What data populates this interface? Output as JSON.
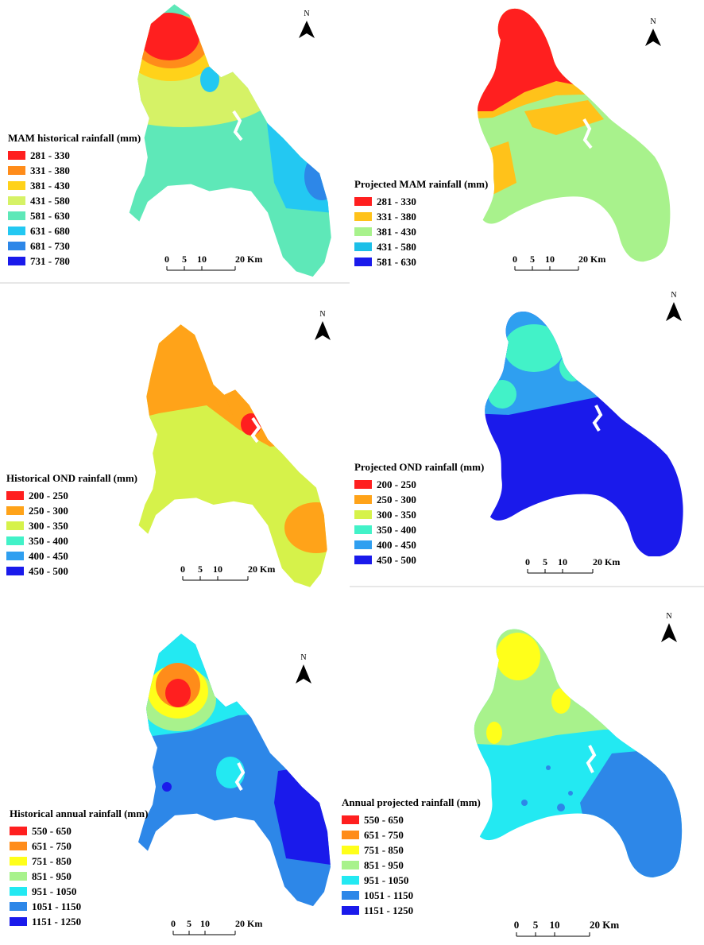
{
  "colors": {
    "red": "#ff1f1f",
    "orange": "#ffa319",
    "yellow": "#ffff1a",
    "yellow_green": "#d6f266",
    "light_green": "#a8f28c",
    "mint": "#66f2c0",
    "cyan": "#23e9f2",
    "sky": "#2fb0f0",
    "blue": "#2d87e8",
    "deep_blue": "#1a1aeb",
    "gold": "#ffc21a",
    "cyan2": "#1cbfe8",
    "cyan3": "#1fdfe8"
  },
  "panels": [
    {
      "title": "MAM historical rainfall (mm)",
      "legend": [
        {
          "label": "281 - 330",
          "color": "#ff1f1f"
        },
        {
          "label": "331 - 380",
          "color": "#ff8c1a"
        },
        {
          "label": "381 - 430",
          "color": "#ffd21a"
        },
        {
          "label": "431 - 580",
          "color": "#d6f266"
        },
        {
          "label": "581 - 630",
          "color": "#5ee8b8"
        },
        {
          "label": "631 - 680",
          "color": "#23c8f2"
        },
        {
          "label": "681 - 730",
          "color": "#2d87e8"
        },
        {
          "label": "731 - 780",
          "color": "#1a1aeb"
        }
      ],
      "scale": [
        "0",
        "5",
        "10",
        "20 Km"
      ],
      "north": "N"
    },
    {
      "title": "Projected MAM rainfall (mm)",
      "legend": [
        {
          "label": "281 - 330",
          "color": "#ff1f1f"
        },
        {
          "label": "331 - 380",
          "color": "#ffc21a"
        },
        {
          "label": "381 - 430",
          "color": "#a8f28c"
        },
        {
          "label": "431 - 580",
          "color": "#1cbfe8"
        },
        {
          "label": "581 - 630",
          "color": "#1a1aeb"
        }
      ],
      "scale": [
        "0",
        "5",
        "10",
        "20 Km"
      ],
      "north": "N"
    },
    {
      "title": "Historical OND rainfall (mm)",
      "legend": [
        {
          "label": "200 - 250",
          "color": "#ff1f1f"
        },
        {
          "label": "250 - 300",
          "color": "#ffa319"
        },
        {
          "label": "300 - 350",
          "color": "#d6f24a"
        },
        {
          "label": "350 - 400",
          "color": "#42f2c8"
        },
        {
          "label": "400 - 450",
          "color": "#2f9ff0"
        },
        {
          "label": "450 - 500",
          "color": "#1a1aeb"
        }
      ],
      "scale": [
        "0",
        "5",
        "10",
        "20 Km"
      ],
      "north": "N"
    },
    {
      "title": "Projected OND rainfall (mm)",
      "legend": [
        {
          "label": "200 - 250",
          "color": "#ff1f1f"
        },
        {
          "label": "250 - 300",
          "color": "#ffa319"
        },
        {
          "label": "300 - 350",
          "color": "#d6f24a"
        },
        {
          "label": "350 - 400",
          "color": "#42f2c8"
        },
        {
          "label": "400 - 450",
          "color": "#2f9ff0"
        },
        {
          "label": "450 - 500",
          "color": "#1a1aeb"
        }
      ],
      "scale": [
        "0",
        "5",
        "10",
        "20 Km"
      ],
      "north": "N"
    },
    {
      "title": "Historical annual rainfall (mm)",
      "legend": [
        {
          "label": "550 - 650",
          "color": "#ff1f1f"
        },
        {
          "label": "651 - 750",
          "color": "#ff8c1a"
        },
        {
          "label": "751 - 850",
          "color": "#ffff1a"
        },
        {
          "label": "851 - 950",
          "color": "#a8f28c"
        },
        {
          "label": "951 - 1050",
          "color": "#23e9f2"
        },
        {
          "label": "1051 - 1150",
          "color": "#2d87e8"
        },
        {
          "label": "1151 - 1250",
          "color": "#1a1aeb"
        }
      ],
      "scale": [
        "0",
        "5",
        "10",
        "20 Km"
      ],
      "north": "N"
    },
    {
      "title": "Annual projected rainfall (mm)",
      "legend": [
        {
          "label": "550 - 650",
          "color": "#ff1f1f"
        },
        {
          "label": "651 - 750",
          "color": "#ff8c1a"
        },
        {
          "label": "751 - 850",
          "color": "#ffff1a"
        },
        {
          "label": "851 - 950",
          "color": "#a8f28c"
        },
        {
          "label": "951 - 1050",
          "color": "#23e9f2"
        },
        {
          "label": "1051 - 1150",
          "color": "#2d87e8"
        },
        {
          "label": "1151 - 1250",
          "color": "#1a1aeb"
        }
      ],
      "scale": [
        "0",
        "5",
        "10",
        "20 Km"
      ],
      "north": "N"
    }
  ]
}
